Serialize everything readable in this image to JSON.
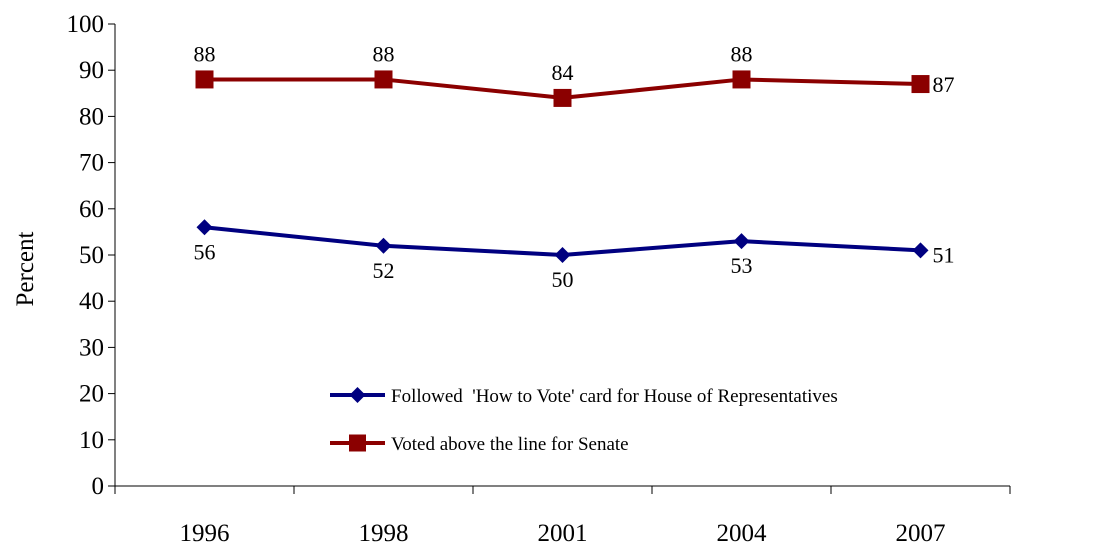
{
  "chart_data": {
    "type": "line",
    "title": "",
    "xlabel": "",
    "ylabel": "Percent",
    "ylim": [
      0,
      100
    ],
    "yticks": [
      0,
      10,
      20,
      30,
      40,
      50,
      60,
      70,
      80,
      90,
      100
    ],
    "categories": [
      "1996",
      "1998",
      "2001",
      "2004",
      "2007"
    ],
    "series": [
      {
        "name": "Followed  'How to Vote' card for House of Representatives",
        "color": "#000080",
        "marker": "diamond",
        "values": [
          56,
          52,
          50,
          53,
          51
        ],
        "labels": [
          "56",
          "52",
          "50",
          "53",
          "51"
        ]
      },
      {
        "name": "Voted above the line for Senate",
        "color": "#8B0000",
        "marker": "square",
        "values": [
          88,
          88,
          84,
          88,
          87
        ],
        "labels": [
          "88",
          "88",
          "84",
          "88",
          "87"
        ]
      }
    ],
    "grid": false,
    "legend_position": "bottom-center-inside"
  }
}
